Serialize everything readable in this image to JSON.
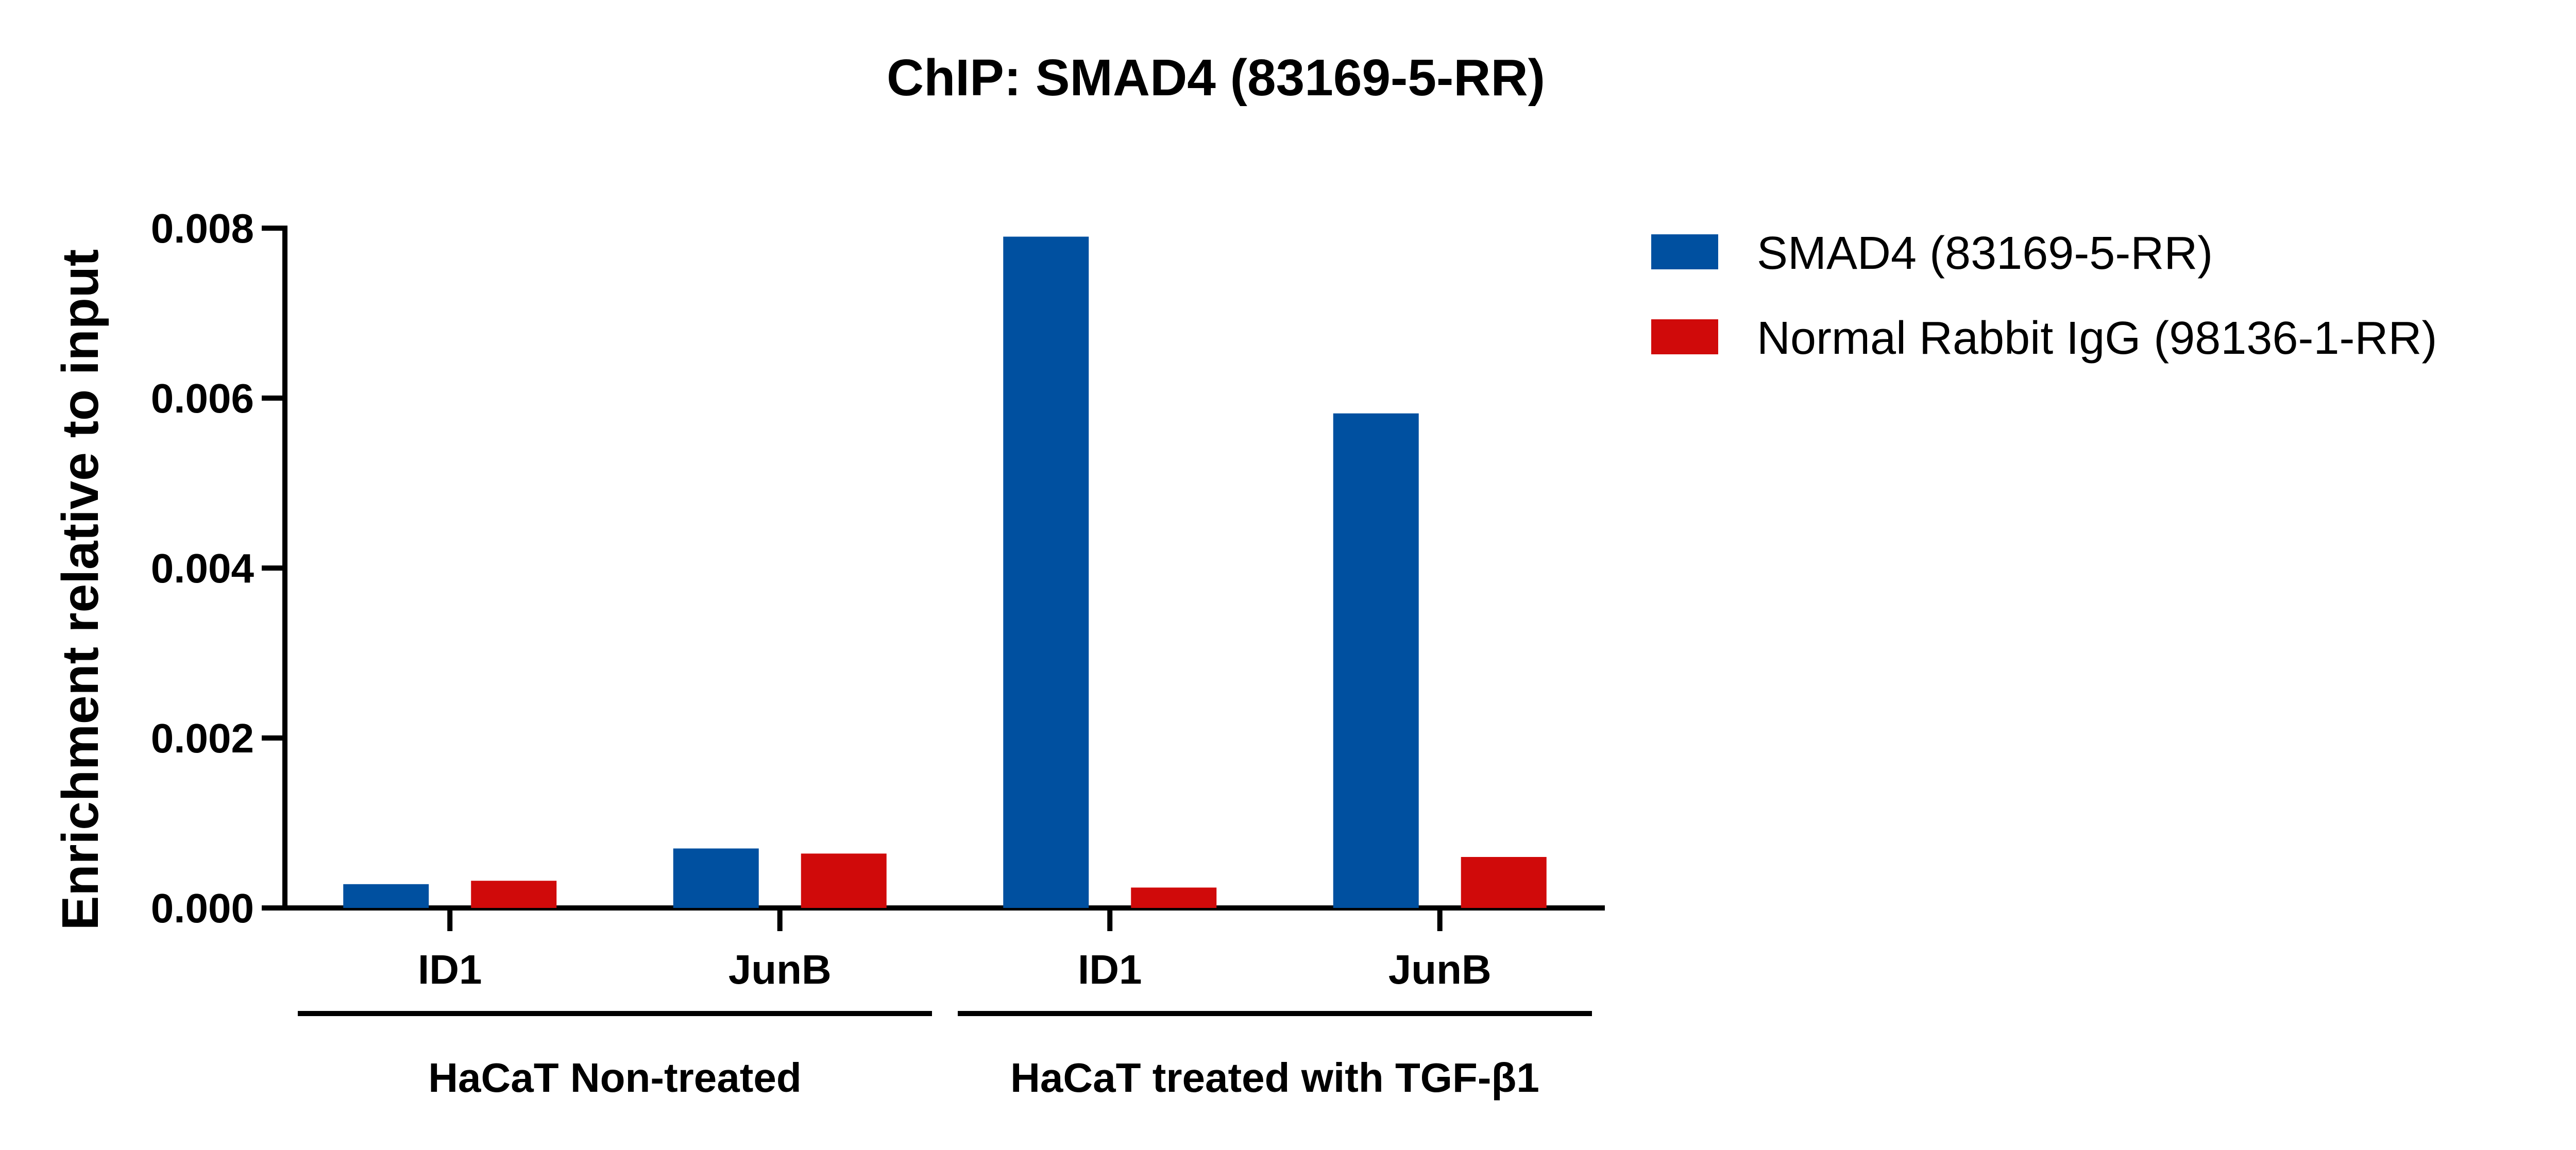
{
  "chart_data": {
    "type": "bar",
    "title": "ChIP: SMAD4 (83169-5-RR)",
    "xlabel": "",
    "ylabel": "Enrichment relative to input",
    "ylim": [
      0,
      0.008
    ],
    "yticks": [
      "0.000",
      "0.002",
      "0.004",
      "0.006",
      "0.008"
    ],
    "ytick_values": [
      0,
      0.002,
      0.004,
      0.006,
      0.008
    ],
    "categories": [
      "ID1",
      "JunB",
      "ID1",
      "JunB"
    ],
    "groups": [
      {
        "label": "HaCaT Non-treated",
        "categories": [
          0,
          1
        ]
      },
      {
        "label": "HaCaT treated with TGF-β1",
        "categories": [
          2,
          3
        ]
      }
    ],
    "series": [
      {
        "name": "SMAD4 (83169-5-RR)",
        "color": "#0050A0",
        "values": [
          0.00028,
          0.0007,
          0.0079,
          0.00582
        ]
      },
      {
        "name": "Normal Rabbit IgG (98136-1-RR)",
        "color": "#D00A0A",
        "values": [
          0.00032,
          0.00064,
          0.00024,
          0.0006
        ]
      }
    ],
    "legend_position": "top-right",
    "grid": false
  }
}
